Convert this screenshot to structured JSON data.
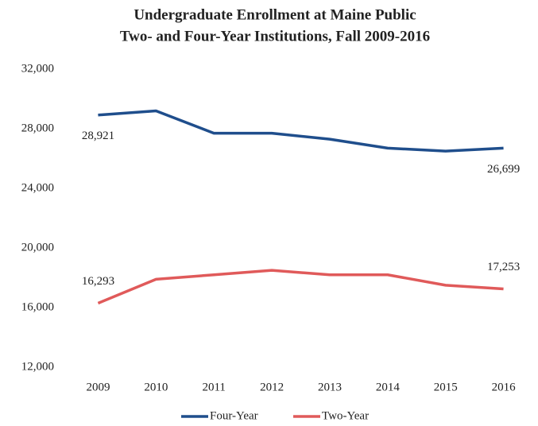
{
  "chart_data": {
    "type": "line",
    "title": [
      "Undergraduate Enrollment at Maine Public",
      "Two- and Four-Year Institutions, Fall 2009-2016"
    ],
    "categories": [
      "2009",
      "2010",
      "2011",
      "2012",
      "2013",
      "2014",
      "2015",
      "2016"
    ],
    "series": [
      {
        "name": "Four-Year",
        "color": "#1f4e8c",
        "values": [
          28921,
          29200,
          27700,
          27700,
          27300,
          26700,
          26500,
          26699
        ],
        "value_labels": [
          "28,921",
          null,
          null,
          null,
          null,
          null,
          null,
          "26,699"
        ]
      },
      {
        "name": "Two-Year",
        "color": "#e05a5a",
        "values": [
          16293,
          17900,
          18200,
          18500,
          18200,
          18200,
          17500,
          17253
        ],
        "value_labels": [
          "16,293",
          null,
          null,
          null,
          null,
          null,
          null,
          "17,253"
        ]
      }
    ],
    "ylim": [
      12000,
      32000
    ],
    "yticks": [
      {
        "value": 12000,
        "label": "12,000"
      },
      {
        "value": 16000,
        "label": "16,000"
      },
      {
        "value": 20000,
        "label": "20,000"
      },
      {
        "value": 24000,
        "label": "24,000"
      },
      {
        "value": 28000,
        "label": "28,000"
      },
      {
        "value": 32000,
        "label": "32,000"
      }
    ],
    "grid": false,
    "legend": "bottom"
  }
}
